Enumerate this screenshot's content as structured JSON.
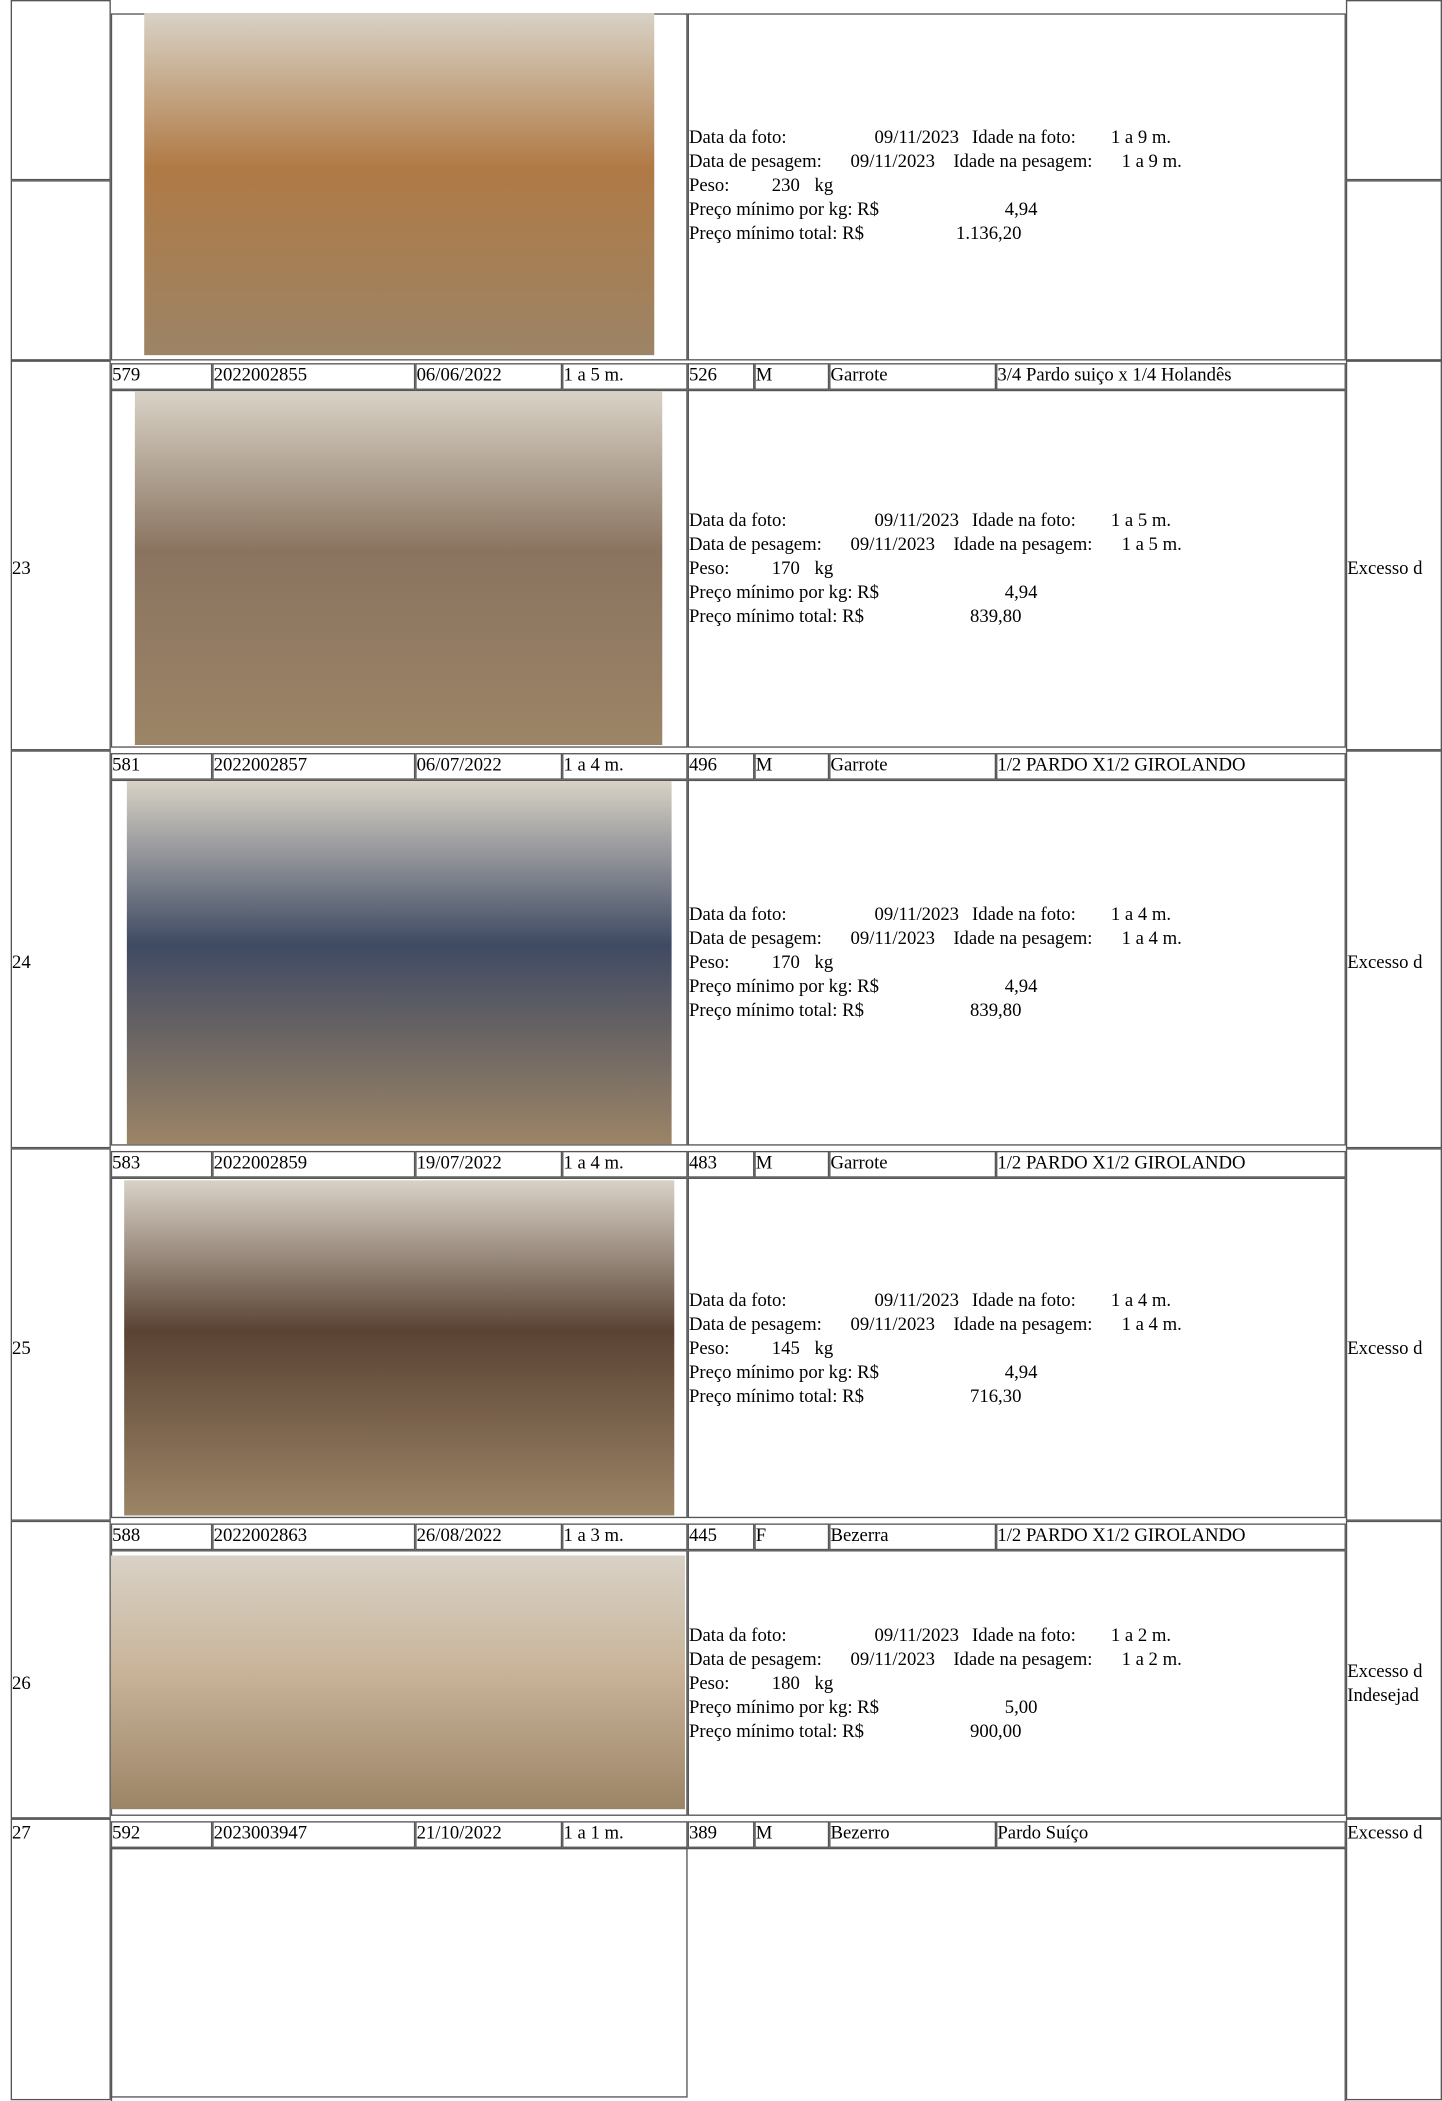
{
  "labels": {
    "photo_date": "Data da foto:",
    "photo_age": "Idade na foto:",
    "weigh_date": "Data de pesagem:",
    "weigh_age": "Idade na pesagem:",
    "weight": "Peso:",
    "unit": "kg",
    "price_kg": "Preço mínimo por kg: R$",
    "price_total": "Preço mínimo total: R$"
  },
  "top_record": {
    "details": {
      "photo_date": "09/11/2023",
      "photo_age": "1 a 9 m.",
      "weigh_date": "09/11/2023",
      "weigh_age": "1 a 9 m.",
      "weight": "230",
      "price_kg": "4,94",
      "price_total": "1.136,20"
    }
  },
  "records": [
    {
      "number": "23",
      "lot": "579",
      "id": "2022002855",
      "birth": "06/06/2022",
      "age": "1 a 5 m.",
      "code": "526",
      "sex": "M",
      "category": "Garrote",
      "breed": "3/4 Pardo suiço x 1/4 Holandês",
      "note": [
        "Excesso d"
      ],
      "details": {
        "photo_date": "09/11/2023",
        "photo_age": "1 a 5 m.",
        "weigh_date": "09/11/2023",
        "weigh_age": "1 a 5 m.",
        "weight": "170",
        "price_kg": "4,94",
        "price_total": "839,80"
      }
    },
    {
      "number": "24",
      "lot": "581",
      "id": "2022002857",
      "birth": "06/07/2022",
      "age": "1 a 4 m.",
      "code": "496",
      "sex": "M",
      "category": "Garrote",
      "breed": "1/2 PARDO X1/2 GIROLANDO",
      "note": [
        "Excesso d"
      ],
      "details": {
        "photo_date": "09/11/2023",
        "photo_age": "1 a 4 m.",
        "weigh_date": "09/11/2023",
        "weigh_age": "1 a 4 m.",
        "weight": "170",
        "price_kg": "4,94",
        "price_total": "839,80"
      }
    },
    {
      "number": "25",
      "lot": "583",
      "id": "2022002859",
      "birth": "19/07/2022",
      "age": "1 a 4 m.",
      "code": "483",
      "sex": "M",
      "category": "Garrote",
      "breed": "1/2 PARDO X1/2 GIROLANDO",
      "note": [
        "Excesso d"
      ],
      "details": {
        "photo_date": "09/11/2023",
        "photo_age": "1 a 4 m.",
        "weigh_date": "09/11/2023",
        "weigh_age": "1 a 4 m.",
        "weight": "145",
        "price_kg": "4,94",
        "price_total": "716,30"
      }
    },
    {
      "number": "26",
      "lot": "588",
      "id": "2022002863",
      "birth": "26/08/2022",
      "age": "1 a 3 m.",
      "code": "445",
      "sex": "F",
      "category": "Bezerra",
      "breed": "1/2 PARDO X1/2 GIROLANDO",
      "note": [
        "Excesso d",
        "Indesejad"
      ],
      "details": {
        "photo_date": "09/11/2023",
        "photo_age": "1 a 2 m.",
        "weigh_date": "09/11/2023",
        "weigh_age": "1 a 2 m.",
        "weight": "180",
        "price_kg": "5,00",
        "price_total": "900,00"
      }
    },
    {
      "number": "27",
      "lot": "592",
      "id": "2023003947",
      "birth": "21/10/2022",
      "age": "1 a 1 m.",
      "code": "389",
      "sex": "M",
      "category": "Bezerro",
      "breed": "Pardo Suíço",
      "note": [
        "Excesso d"
      ]
    }
  ]
}
